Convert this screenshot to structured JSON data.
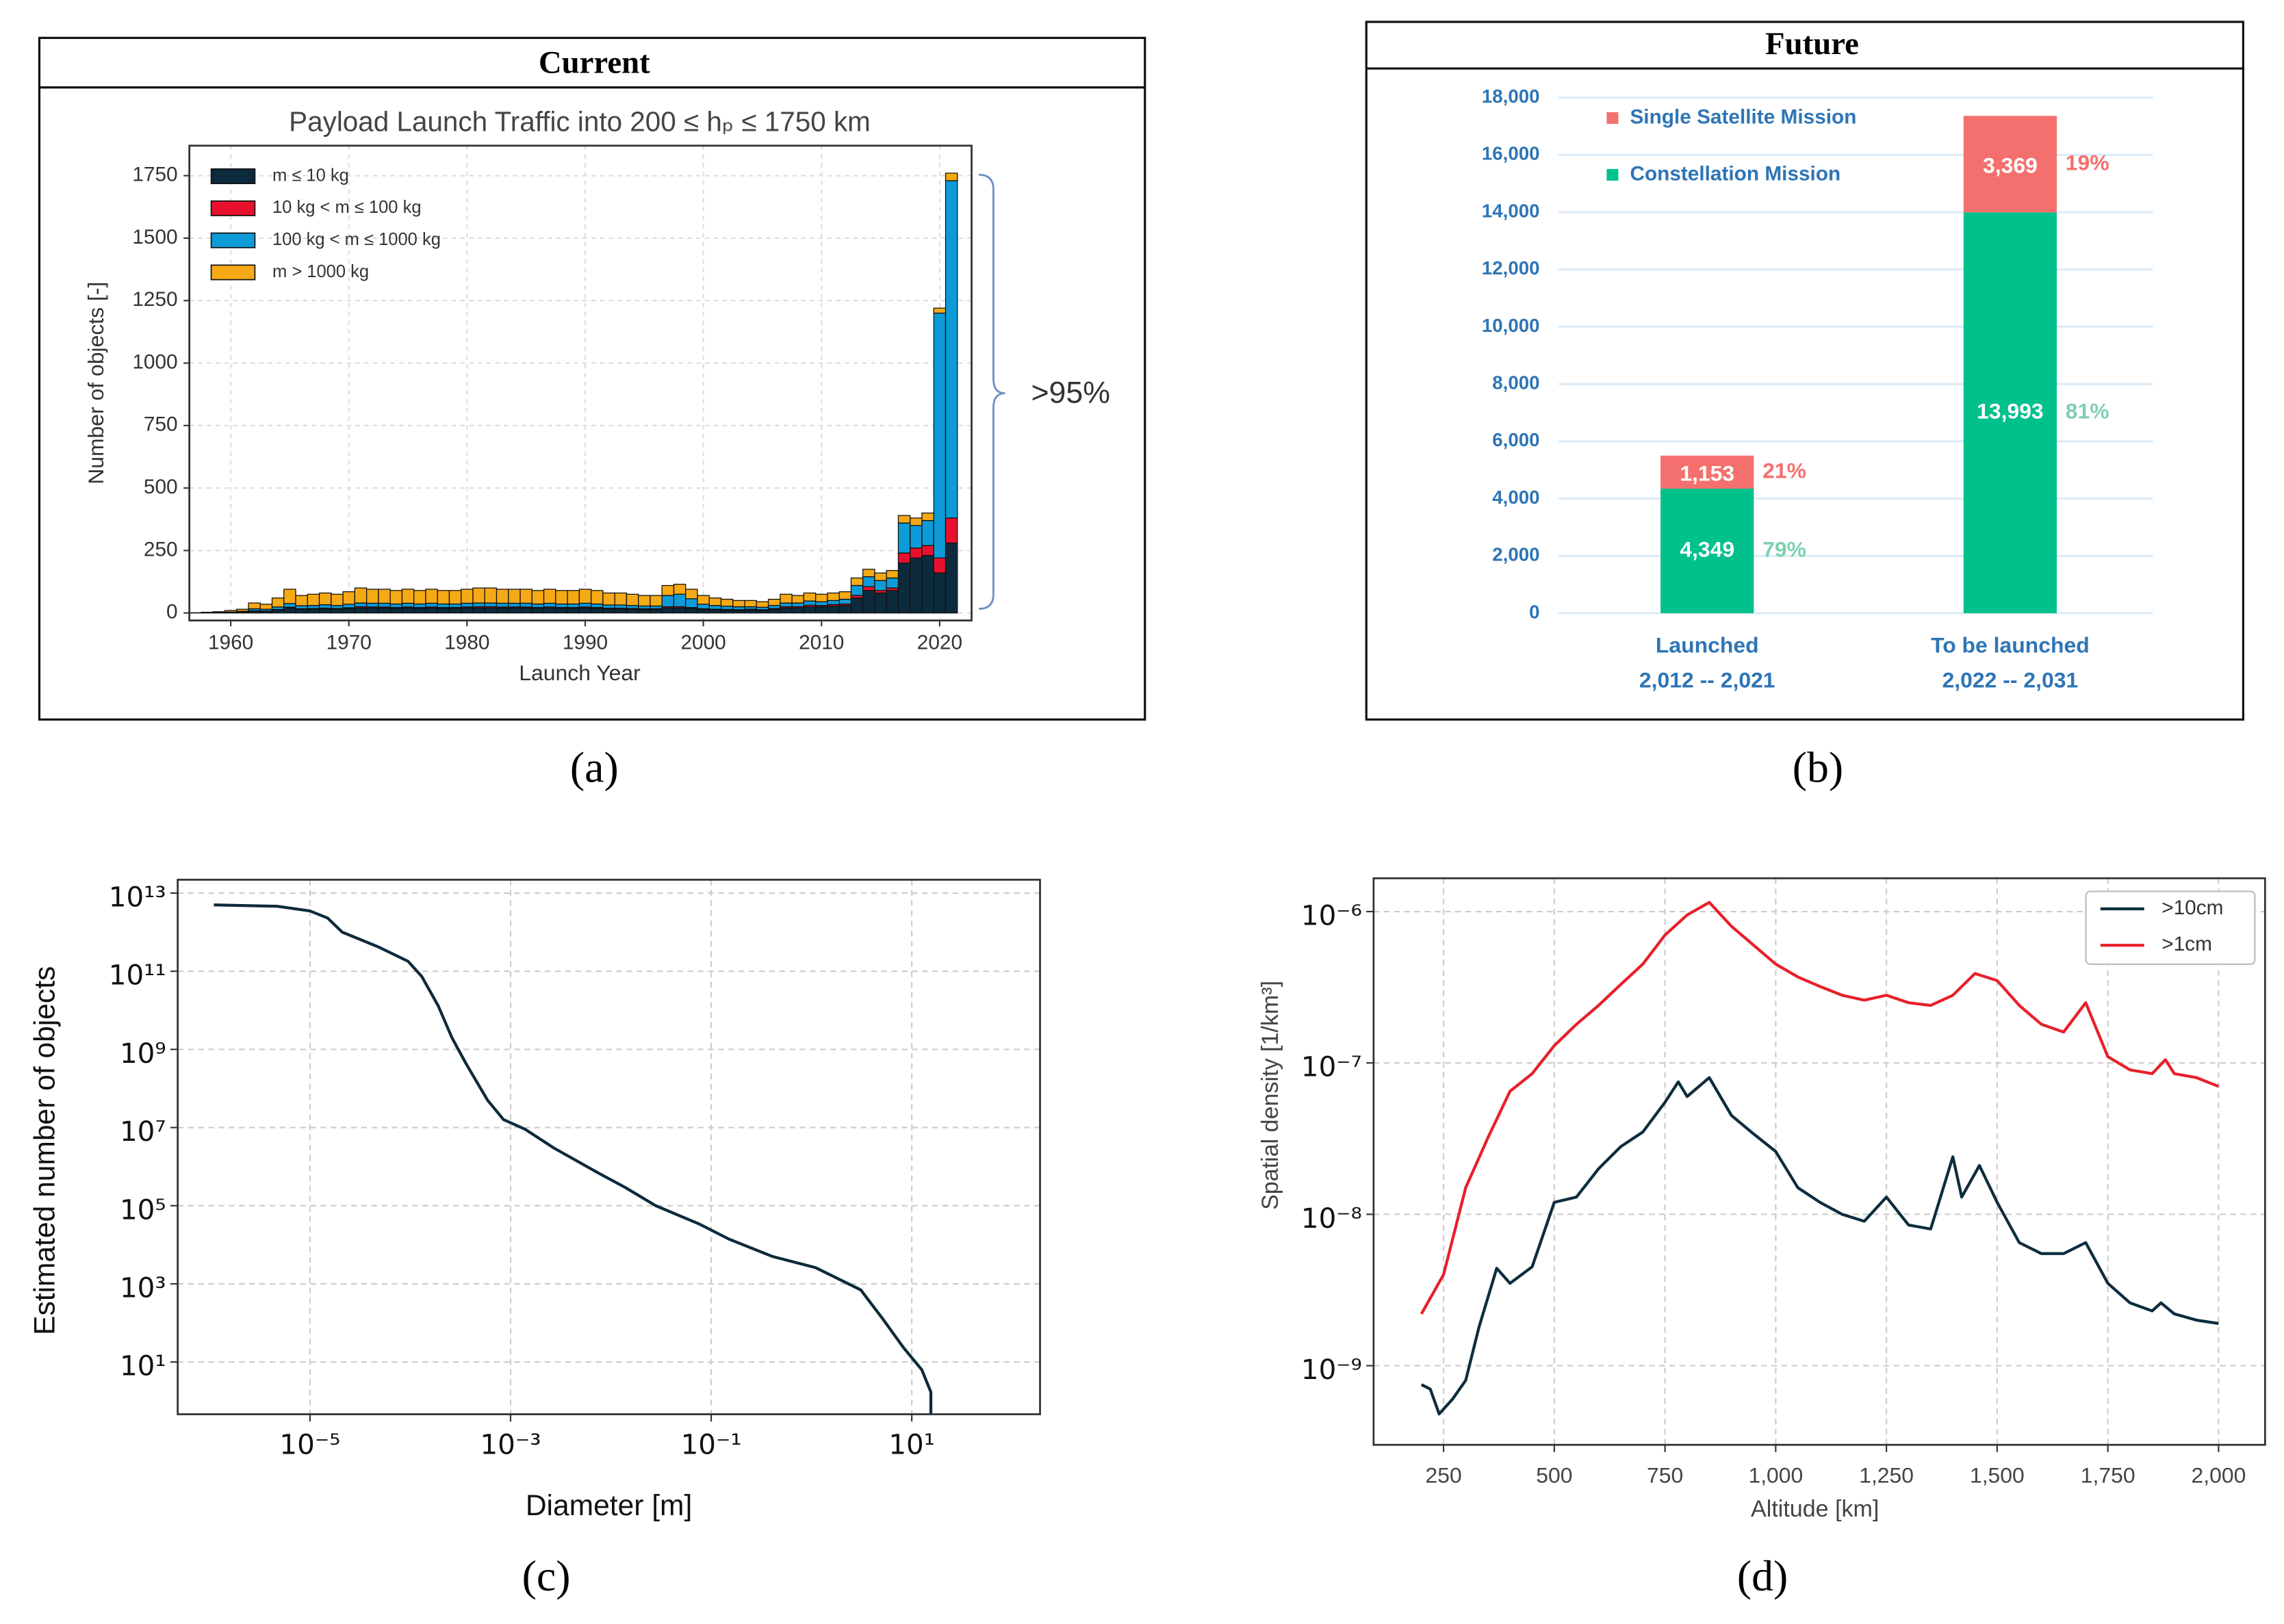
{
  "chart_data": [
    {
      "type": "bar",
      "stacked": true,
      "panel": "Current",
      "caption": "(a)",
      "title": "Payload Launch Traffic into 200 ≤ hₚ ≤ 1750 km",
      "x_label": "Launch Year",
      "y_label": "Number of objects [-]",
      "annotation": ">95%",
      "x": [
        1957,
        1958,
        1959,
        1960,
        1961,
        1962,
        1963,
        1964,
        1965,
        1966,
        1967,
        1968,
        1969,
        1970,
        1971,
        1972,
        1973,
        1974,
        1975,
        1976,
        1977,
        1978,
        1979,
        1980,
        1981,
        1982,
        1983,
        1984,
        1985,
        1986,
        1987,
        1988,
        1989,
        1990,
        1991,
        1992,
        1993,
        1994,
        1995,
        1996,
        1997,
        1998,
        1999,
        2000,
        2001,
        2002,
        2003,
        2004,
        2005,
        2006,
        2007,
        2008,
        2009,
        2010,
        2011,
        2012,
        2013,
        2014,
        2015,
        2016,
        2017,
        2018,
        2019,
        2020,
        2021
      ],
      "series": [
        {
          "name": "m  ≤  10 kg",
          "color": "#0b2a3c",
          "values": [
            0,
            1,
            1,
            2,
            3,
            8,
            7,
            12,
            20,
            15,
            15,
            16,
            15,
            18,
            20,
            20,
            20,
            18,
            20,
            18,
            20,
            18,
            18,
            20,
            20,
            20,
            20,
            20,
            20,
            18,
            20,
            18,
            18,
            20,
            18,
            16,
            16,
            15,
            14,
            14,
            20,
            20,
            18,
            14,
            12,
            11,
            10,
            12,
            10,
            14,
            20,
            20,
            25,
            25,
            28,
            30,
            60,
            90,
            80,
            90,
            200,
            220,
            230,
            160,
            280
          ]
        },
        {
          "name": "10 kg < m ≤ 100 kg",
          "color": "#e8112d",
          "values": [
            0,
            0,
            0,
            0,
            1,
            1,
            1,
            2,
            3,
            2,
            3,
            3,
            3,
            3,
            5,
            4,
            4,
            4,
            4,
            4,
            4,
            4,
            4,
            4,
            5,
            5,
            4,
            4,
            4,
            4,
            4,
            4,
            4,
            4,
            4,
            3,
            3,
            3,
            3,
            3,
            5,
            5,
            4,
            3,
            3,
            3,
            3,
            3,
            3,
            4,
            5,
            5,
            6,
            5,
            6,
            6,
            10,
            15,
            10,
            10,
            40,
            40,
            40,
            60,
            100
          ]
        },
        {
          "name": "100 kg < m ≤ 1000 kg",
          "color": "#0d9bd7",
          "values": [
            0,
            0,
            1,
            2,
            3,
            8,
            7,
            10,
            15,
            12,
            12,
            14,
            12,
            14,
            15,
            15,
            15,
            14,
            15,
            14,
            15,
            14,
            14,
            15,
            15,
            15,
            15,
            15,
            15,
            14,
            15,
            14,
            14,
            15,
            14,
            13,
            13,
            12,
            11,
            11,
            45,
            50,
            35,
            18,
            15,
            13,
            12,
            10,
            10,
            12,
            15,
            15,
            17,
            15,
            16,
            19,
            40,
            40,
            40,
            40,
            120,
            90,
            100,
            980,
            1350
          ]
        },
        {
          "name": "m > 1000 kg",
          "color": "#f5a915",
          "values": [
            1,
            2,
            3,
            6,
            8,
            23,
            20,
            36,
            57,
            41,
            45,
            47,
            45,
            50,
            60,
            56,
            56,
            54,
            56,
            54,
            56,
            54,
            54,
            56,
            60,
            60,
            56,
            56,
            56,
            54,
            56,
            54,
            54,
            56,
            54,
            48,
            48,
            45,
            42,
            42,
            40,
            40,
            38,
            35,
            30,
            28,
            25,
            25,
            22,
            25,
            35,
            30,
            32,
            30,
            30,
            30,
            30,
            30,
            30,
            30,
            30,
            30,
            30,
            20,
            30
          ]
        }
      ],
      "xlim": [
        1956.5,
        2022.7
      ],
      "ylim": [
        -30,
        1870
      ],
      "xticks": [
        1960,
        1970,
        1980,
        1990,
        2000,
        2010,
        2020
      ],
      "yticks": [
        0,
        250,
        500,
        750,
        1000,
        1250,
        1500,
        1750
      ],
      "grid": true,
      "legend": "upper left"
    },
    {
      "type": "bar",
      "stacked": true,
      "panel": "Future",
      "caption": "(b)",
      "categories": [
        [
          "Launched",
          "2,012 -- 2,021"
        ],
        [
          "To be launched",
          "2,022 -- 2,031"
        ]
      ],
      "series": [
        {
          "name": "Constellation Mission",
          "color": "#00c08b",
          "share_color": "#7fd0b0",
          "values": [
            4349,
            13993
          ],
          "value_labels": [
            "4,349",
            "13,993"
          ],
          "share_labels": [
            "79%",
            "81%"
          ]
        },
        {
          "name": "Single Satellite Mission",
          "color": "#f4706e",
          "share_color": "#f4706e",
          "values": [
            1153,
            3369
          ],
          "value_labels": [
            "1,153",
            "3,369"
          ],
          "share_labels": [
            "21%",
            "19%"
          ]
        }
      ],
      "ylim": [
        0,
        18000
      ],
      "yticks": [
        0,
        {
          "value": 2000,
          "label": "2,000"
        },
        {
          "value": 4000,
          "label": "4,000"
        },
        {
          "value": 6000,
          "label": "6,000"
        },
        {
          "value": 8000,
          "label": "8,000"
        },
        {
          "value": 10000,
          "label": "10,000"
        },
        {
          "value": 12000,
          "label": "12,000"
        },
        {
          "value": 14000,
          "label": "14,000"
        },
        {
          "value": 16000,
          "label": "16,000"
        },
        {
          "value": 18000,
          "label": "18,000"
        }
      ],
      "grid": true,
      "legend": "upper left"
    },
    {
      "type": "line",
      "caption": "(c)",
      "x_label": "Diameter [m]",
      "y_label": "Estimated number of objects",
      "log_x": true,
      "log_y": true,
      "x": [
        1.1e-06,
        4.7e-06,
        1e-05,
        1.5e-05,
        2.1e-05,
        4.8e-05,
        9.5e-05,
        0.00013,
        0.00019,
        0.00026,
        0.00036,
        0.00059,
        0.00085,
        0.0014,
        0.0027,
        0.0074,
        0.014,
        0.028,
        0.076,
        0.15,
        0.41,
        1.1,
        3.1,
        5.1,
        8.3,
        12.6,
        15.5,
        15.5
      ],
      "series": [
        {
          "color": "#0d2b3a",
          "values": [
            5000000000000.0,
            4600000000000.0,
            3500000000000.0,
            2300000000000.0,
            1000000000000.0,
            420000000000.0,
            180000000000.0,
            74000000000.0,
            13000000000.0,
            2000000000.0,
            430000000.0,
            50000000.0,
            16000000.0,
            9000000.0,
            3000000.0,
            700000.0,
            290000.0,
            100000.0,
            34000.0,
            14000.0,
            5000,
            2600,
            700,
            130,
            23,
            6.3,
            1.7,
            0.48
          ]
        }
      ],
      "xlim": [
        4.8e-07,
        190
      ],
      "ylim": [
        0.46,
        22000000000000.0
      ],
      "xticks": [
        {
          "value": 1e-05,
          "label": "10⁻⁵"
        },
        {
          "value": 0.001,
          "label": "10⁻³"
        },
        {
          "value": 0.1,
          "label": "10⁻¹"
        },
        {
          "value": 10,
          "label": "10¹"
        }
      ],
      "yticks": [
        {
          "value": 10,
          "label": "10¹"
        },
        {
          "value": 1000,
          "label": "10³"
        },
        {
          "value": 100000,
          "label": "10⁵"
        },
        {
          "value": 10000000.0,
          "label": "10⁷"
        },
        {
          "value": 1000000000.0,
          "label": "10⁹"
        },
        {
          "value": 100000000000.0,
          "label": "10¹¹"
        },
        {
          "value": 10000000000000.0,
          "label": "10¹³"
        }
      ],
      "grid": true
    },
    {
      "type": "line",
      "caption": "(d)",
      "x_label": "Altitude [km]",
      "y_label": "Spatial density [1/km³]",
      "log_y": true,
      "series": [
        {
          "name": ">10cm",
          "color": "#0d2d3e",
          "x": [
            200,
            220,
            240,
            270,
            300,
            330,
            370,
            400,
            450,
            500,
            550,
            600,
            650,
            700,
            750,
            780,
            800,
            850,
            900,
            950,
            1000,
            1050,
            1100,
            1150,
            1200,
            1250,
            1300,
            1350,
            1400,
            1420,
            1460,
            1500,
            1550,
            1600,
            1650,
            1700,
            1750,
            1800,
            1850,
            1870,
            1900,
            1950,
            2000
          ],
          "values": [
            7.5e-10,
            7e-10,
            4.8e-10,
            6e-10,
            8e-10,
            1.8e-09,
            4.4e-09,
            3.5e-09,
            4.5e-09,
            1.2e-08,
            1.3e-08,
            2e-08,
            2.8e-08,
            3.5e-08,
            5.5e-08,
            7.5e-08,
            6e-08,
            8e-08,
            4.5e-08,
            3.4e-08,
            2.6e-08,
            1.5e-08,
            1.2e-08,
            1e-08,
            9e-09,
            1.3e-08,
            8.5e-09,
            8e-09,
            2.4e-08,
            1.3e-08,
            2.1e-08,
            1.2e-08,
            6.5e-09,
            5.5e-09,
            5.5e-09,
            6.5e-09,
            3.5e-09,
            2.6e-09,
            2.3e-09,
            2.6e-09,
            2.2e-09,
            2e-09,
            1.9e-09
          ]
        },
        {
          "name": ">1cm",
          "color": "#e8202a",
          "x": [
            200,
            250,
            300,
            350,
            400,
            450,
            500,
            550,
            600,
            650,
            700,
            750,
            800,
            850,
            900,
            950,
            1000,
            1050,
            1100,
            1150,
            1200,
            1250,
            1300,
            1350,
            1400,
            1450,
            1500,
            1550,
            1600,
            1650,
            1700,
            1750,
            1800,
            1850,
            1880,
            1900,
            1950,
            2000
          ],
          "values": [
            2.2e-09,
            4e-09,
            1.5e-08,
            3.2e-08,
            6.5e-08,
            8.5e-08,
            1.3e-07,
            1.8e-07,
            2.4e-07,
            3.3e-07,
            4.5e-07,
            7e-07,
            9.5e-07,
            1.15e-06,
            8e-07,
            6e-07,
            4.5e-07,
            3.7e-07,
            3.2e-07,
            2.8e-07,
            2.6e-07,
            2.8e-07,
            2.5e-07,
            2.4e-07,
            2.8e-07,
            3.9e-07,
            3.5e-07,
            2.4e-07,
            1.8e-07,
            1.6e-07,
            2.5e-07,
            1.1e-07,
            9e-08,
            8.5e-08,
            1.05e-07,
            8.5e-08,
            8e-08,
            7e-08
          ]
        }
      ],
      "xlim": [
        92,
        2105
      ],
      "ylim": [
        3e-10,
        1.66e-06
      ],
      "xticks": [
        250,
        500,
        750,
        {
          "value": 1000,
          "label": "1,000"
        },
        {
          "value": 1250,
          "label": "1,250"
        },
        {
          "value": 1500,
          "label": "1,500"
        },
        {
          "value": 1750,
          "label": "1,750"
        },
        {
          "value": 2000,
          "label": "2,000"
        }
      ],
      "yticks": [
        {
          "value": 1e-09,
          "label": "10⁻⁹"
        },
        {
          "value": 1e-08,
          "label": "10⁻⁸"
        },
        {
          "value": 1e-07,
          "label": "10⁻⁷"
        },
        {
          "value": 1e-06,
          "label": "10⁻⁶"
        }
      ],
      "grid": true,
      "legend": "upper right"
    }
  ]
}
